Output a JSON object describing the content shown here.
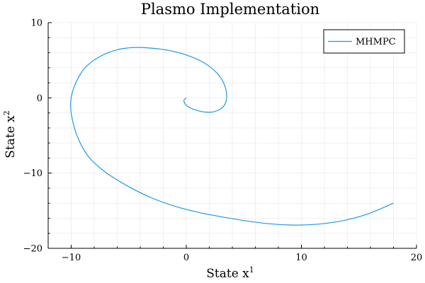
{
  "chart_data": {
    "type": "line",
    "title": "Plasmo Implementation",
    "xlabel": "State x¹",
    "xlabel_base": "State x",
    "xlabel_sup": "1",
    "ylabel": "State x²",
    "ylabel_base": "State x",
    "ylabel_sup": "2",
    "xlim": [
      -12,
      20
    ],
    "ylim": [
      -20,
      10
    ],
    "xticks": [
      -10,
      0,
      10,
      20
    ],
    "yticks": [
      -20,
      -10,
      0,
      10
    ],
    "xtick_labels": [
      "−10",
      "0",
      "10",
      "20"
    ],
    "ytick_labels": [
      "−20",
      "−10",
      "0",
      "10"
    ],
    "grid": true,
    "legend_position": "top-right",
    "series": [
      {
        "name": "MHMPC",
        "color": "#1e9be0",
        "points": [
          [
            18.0,
            -14.0
          ],
          [
            16.0,
            -15.3
          ],
          [
            14.0,
            -16.2
          ],
          [
            12.0,
            -16.7
          ],
          [
            10.0,
            -16.9
          ],
          [
            9.0,
            -16.9
          ],
          [
            7.0,
            -16.7
          ],
          [
            5.0,
            -16.3
          ],
          [
            3.0,
            -15.8
          ],
          [
            1.0,
            -15.2
          ],
          [
            -1.0,
            -14.4
          ],
          [
            -3.0,
            -13.3
          ],
          [
            -5.0,
            -11.8
          ],
          [
            -7.0,
            -9.9
          ],
          [
            -8.5,
            -7.8
          ],
          [
            -9.5,
            -5.0
          ],
          [
            -10.0,
            -2.0
          ],
          [
            -10.0,
            0.0
          ],
          [
            -9.6,
            2.0
          ],
          [
            -8.8,
            4.0
          ],
          [
            -7.5,
            5.5
          ],
          [
            -6.0,
            6.4
          ],
          [
            -4.5,
            6.7
          ],
          [
            -3.0,
            6.6
          ],
          [
            -1.5,
            6.3
          ],
          [
            0.0,
            5.7
          ],
          [
            1.5,
            4.7
          ],
          [
            2.6,
            3.4
          ],
          [
            3.3,
            1.8
          ],
          [
            3.5,
            0.0
          ],
          [
            3.2,
            -1.2
          ],
          [
            2.5,
            -1.8
          ],
          [
            1.8,
            -1.9
          ],
          [
            1.0,
            -1.7
          ],
          [
            0.3,
            -1.3
          ],
          [
            -0.1,
            -0.8
          ],
          [
            -0.2,
            -0.3
          ],
          [
            0.0,
            0.0
          ]
        ]
      }
    ]
  }
}
